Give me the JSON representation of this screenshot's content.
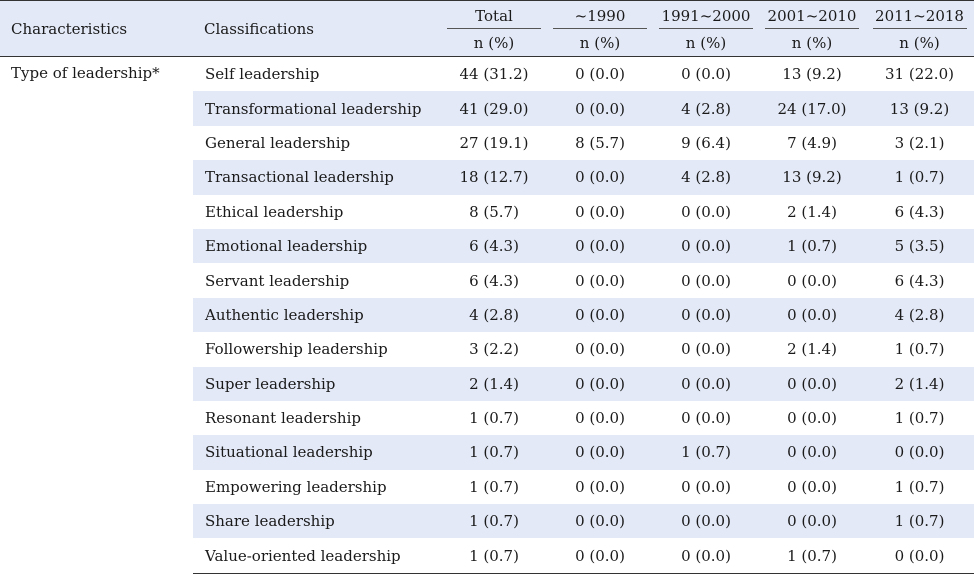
{
  "table": {
    "headers": {
      "characteristics": "Characteristics",
      "classifications": "Classifications",
      "columns": [
        "Total",
        "~1990",
        "1991~2000",
        "2001~2010",
        "2011~2018"
      ],
      "unit": "n (%)"
    },
    "group_label": "Type of leadership*",
    "rows": [
      {
        "name": "Self leadership",
        "values": [
          "44 (31.2)",
          "0 (0.0)",
          "0 (0.0)",
          "13 (9.2)",
          "31 (22.0)"
        ]
      },
      {
        "name": "Transformational leadership",
        "values": [
          "41 (29.0)",
          "0 (0.0)",
          "4 (2.8)",
          "24 (17.0)",
          "13 (9.2)"
        ]
      },
      {
        "name": "General leadership",
        "values": [
          "27 (19.1)",
          "8 (5.7)",
          "9 (6.4)",
          "7 (4.9)",
          "3 (2.1)"
        ]
      },
      {
        "name": "Transactional leadership",
        "values": [
          "18 (12.7)",
          "0 (0.0)",
          "4 (2.8)",
          "13 (9.2)",
          "1 (0.7)"
        ]
      },
      {
        "name": "Ethical leadership",
        "values": [
          "8 (5.7)",
          "0 (0.0)",
          "0 (0.0)",
          "2 (1.4)",
          "6 (4.3)"
        ]
      },
      {
        "name": "Emotional leadership",
        "values": [
          "6 (4.3)",
          "0 (0.0)",
          "0 (0.0)",
          "1 (0.7)",
          "5 (3.5)"
        ]
      },
      {
        "name": "Servant leadership",
        "values": [
          "6 (4.3)",
          "0 (0.0)",
          "0 (0.0)",
          "0 (0.0)",
          "6 (4.3)"
        ]
      },
      {
        "name": "Authentic leadership",
        "values": [
          "4 (2.8)",
          "0 (0.0)",
          "0 (0.0)",
          "0 (0.0)",
          "4 (2.8)"
        ]
      },
      {
        "name": "Followership leadership",
        "values": [
          "3 (2.2)",
          "0 (0.0)",
          "0 (0.0)",
          "2 (1.4)",
          "1 (0.7)"
        ]
      },
      {
        "name": "Super leadership",
        "values": [
          "2 (1.4)",
          "0 (0.0)",
          "0 (0.0)",
          "0 (0.0)",
          "2 (1.4)"
        ]
      },
      {
        "name": "Resonant leadership",
        "values": [
          "1 (0.7)",
          "0 (0.0)",
          "0 (0.0)",
          "0 (0.0)",
          "1 (0.7)"
        ]
      },
      {
        "name": "Situational leadership",
        "values": [
          "1 (0.7)",
          "0 (0.0)",
          "1 (0.7)",
          "0 (0.0)",
          "0 (0.0)"
        ]
      },
      {
        "name": "Empowering leadership",
        "values": [
          "1 (0.7)",
          "0 (0.0)",
          "0 (0.0)",
          "0 (0.0)",
          "1 (0.7)"
        ]
      },
      {
        "name": "Share leadership",
        "values": [
          "1 (0.7)",
          "0 (0.0)",
          "0 (0.0)",
          "0 (0.0)",
          "1 (0.7)"
        ]
      },
      {
        "name": "Value-oriented leadership",
        "values": [
          "1 (0.7)",
          "0 (0.0)",
          "0 (0.0)",
          "1 (0.7)",
          "0 (0.0)"
        ]
      }
    ],
    "band_color": "#e3e9f7"
  }
}
